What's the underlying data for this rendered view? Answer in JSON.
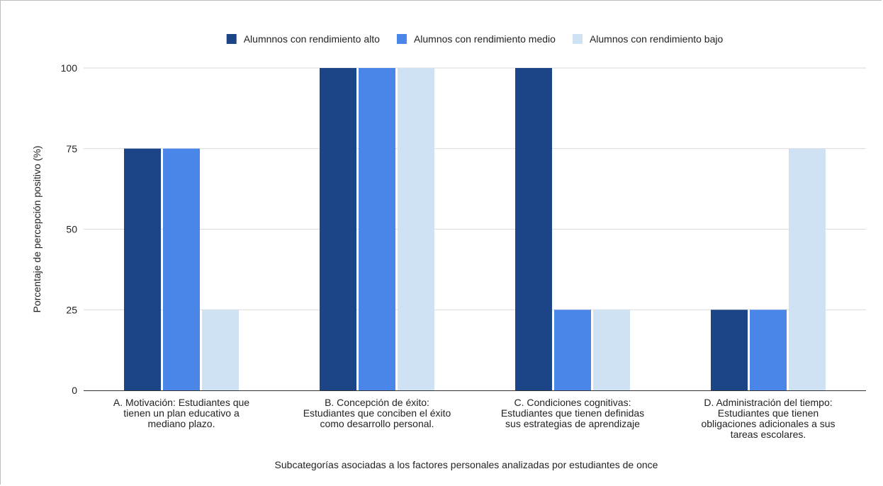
{
  "chart_data": {
    "type": "bar",
    "title": "",
    "xlabel": "Subcategorías asociadas a los factores personales analizadas por estudiantes de once",
    "ylabel": "Porcentaje de percepción positivo (%)",
    "ylim": [
      0,
      100
    ],
    "yticks": [
      0,
      25,
      50,
      75,
      100
    ],
    "grid": true,
    "legend_position": "top",
    "categories": [
      [
        "A. Motivación: Estudiantes que",
        "tienen un plan educativo a",
        "mediano plazo."
      ],
      [
        "B. Concepción de éxito:",
        "Estudiantes que conciben el éxito",
        "como desarrollo personal."
      ],
      [
        "C. Condiciones cognitivas:",
        "Estudiantes que tienen definidas",
        "sus estrategias de aprendizaje"
      ],
      [
        "D. Administración del tiempo:",
        "Estudiantes que tienen",
        "obligaciones adicionales a sus",
        "tareas escolares."
      ]
    ],
    "series": [
      {
        "name": "Alumnnos con rendimiento alto",
        "color": "#1c4587",
        "values": [
          75,
          100,
          100,
          25
        ]
      },
      {
        "name": "Alumnos con rendimiento medio",
        "color": "#4a86e8",
        "values": [
          75,
          100,
          25,
          25
        ]
      },
      {
        "name": "Alumnos con rendimiento bajo",
        "color": "#cfe2f3",
        "values": [
          25,
          100,
          25,
          75
        ]
      }
    ]
  }
}
